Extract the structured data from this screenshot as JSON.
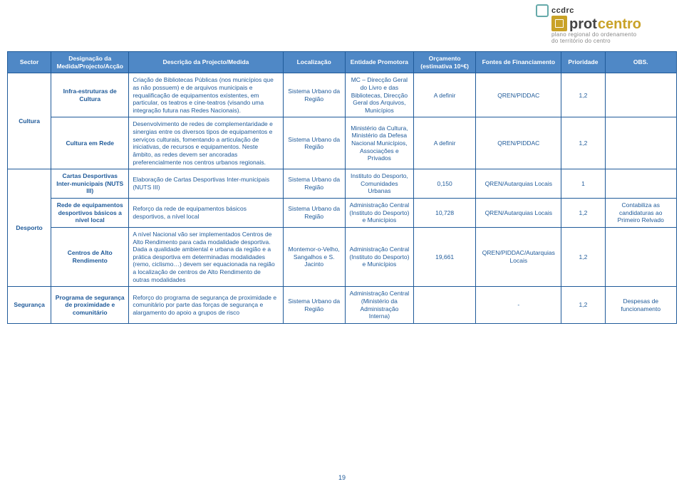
{
  "header": {
    "ccdrc": "ccdrc",
    "brand_plain": "prot",
    "brand_accent": "centro",
    "tagline1": "plano regional do ordenamento",
    "tagline2": "do território do centro"
  },
  "columns": [
    "Sector",
    "Designação da Medida/Projecto/Acção",
    "Descrição da Projecto/Medida",
    "Localização",
    "Entidade Promotora",
    "Orçamento (estimativa 10⁶€)",
    "Fontes de Financiamento",
    "Prioridade",
    "OBS."
  ],
  "rows": [
    {
      "sector": "Cultura",
      "sector_rowspan": 2,
      "desig": "Infra-estruturas de Cultura",
      "desc": "Criação de Bibliotecas Públicas (nos municípios que as não possuem) e de arquivos municipais e requalificação de equipamentos existentes, em particular, os teatros e cine-teatros (visando uma integração futura nas Redes Nacionais).",
      "loc": "Sistema Urbano da Região",
      "ent": "MC – Direcção Geral do Livro e das Bibliotecas, Direcção Geral dos Arquivos, Municípios",
      "orc": "A definir",
      "fin": "QREN/PIDDAC",
      "prio": "1,2",
      "obs": ""
    },
    {
      "desig": "Cultura em Rede",
      "desc": "Desenvolvimento de redes de complementaridade e sinergias entre os diversos tipos de equipamentos e serviços culturais, fomentando a articulação de iniciativas, de recursos e equipamentos. Neste âmbito, as redes devem ser ancoradas preferencialmente nos centros urbanos regionais.",
      "loc": "Sistema Urbano da Região",
      "ent": "Ministério da Cultura, Ministério da Defesa Nacional Municípios, Associações e Privados",
      "orc": "A definir",
      "fin": "QREN/PIDDAC",
      "prio": "1,2",
      "obs": ""
    },
    {
      "sector": "Desporto",
      "sector_rowspan": 3,
      "desig": "Cartas Desportivas Inter-municipais (NUTS III)",
      "desc": "Elaboração de Cartas Desportivas Inter-municipais (NUTS III)",
      "loc": "Sistema Urbano da Região",
      "ent": "Instituto do Desporto, Comunidades Urbanas",
      "orc": "0,150",
      "fin": "QREN/Autarquias Locais",
      "prio": "1",
      "obs": ""
    },
    {
      "desig": "Rede de equipamentos desportivos básicos a nível local",
      "desc": "Reforço da rede de equipamentos básicos desportivos, a nível local",
      "loc": "Sistema Urbano da Região",
      "ent": "Administração Central (Instituto do Desporto) e Municípios",
      "orc": "10,728",
      "fin": "QREN/Autarquias Locais",
      "prio": "1,2",
      "obs": "Contabiliza as candidaturas ao Primeiro Relvado"
    },
    {
      "desig": "Centros de Alto Rendimento",
      "desc": "A nível Nacional vão ser implementados Centros de Alto Rendimento para cada modalidade desportiva. Dada a qualidade ambiental e urbana da região e a prática desportiva em determinadas modalidades (remo, ciclismo…) devem ser equacionada na região a localização de centros de Alto Rendimento de outras modalidades",
      "loc": "Montemor-o-Velho, Sangalhos e S. Jacinto",
      "ent": "Administração Central (Instituto do Desporto) e Municípios",
      "orc": "19,661",
      "fin": "QREN/PIDDAC/Autarquias Locais",
      "prio": "1,2",
      "obs": ""
    },
    {
      "sector": "Segurança",
      "sector_rowspan": 1,
      "desig": "Programa de segurança de proximidade e comunitário",
      "desc": "Reforço do programa de segurança de proximidade e comunitário por parte das forças de segurança e alargamento do apoio a grupos de risco",
      "loc": "Sistema Urbano da Região",
      "ent": "Administração Central (Ministério da Administração Interna)",
      "orc": "",
      "fin": "-",
      "prio": "1,2",
      "obs": "Despesas de funcionamento"
    }
  ],
  "page_number": "19"
}
